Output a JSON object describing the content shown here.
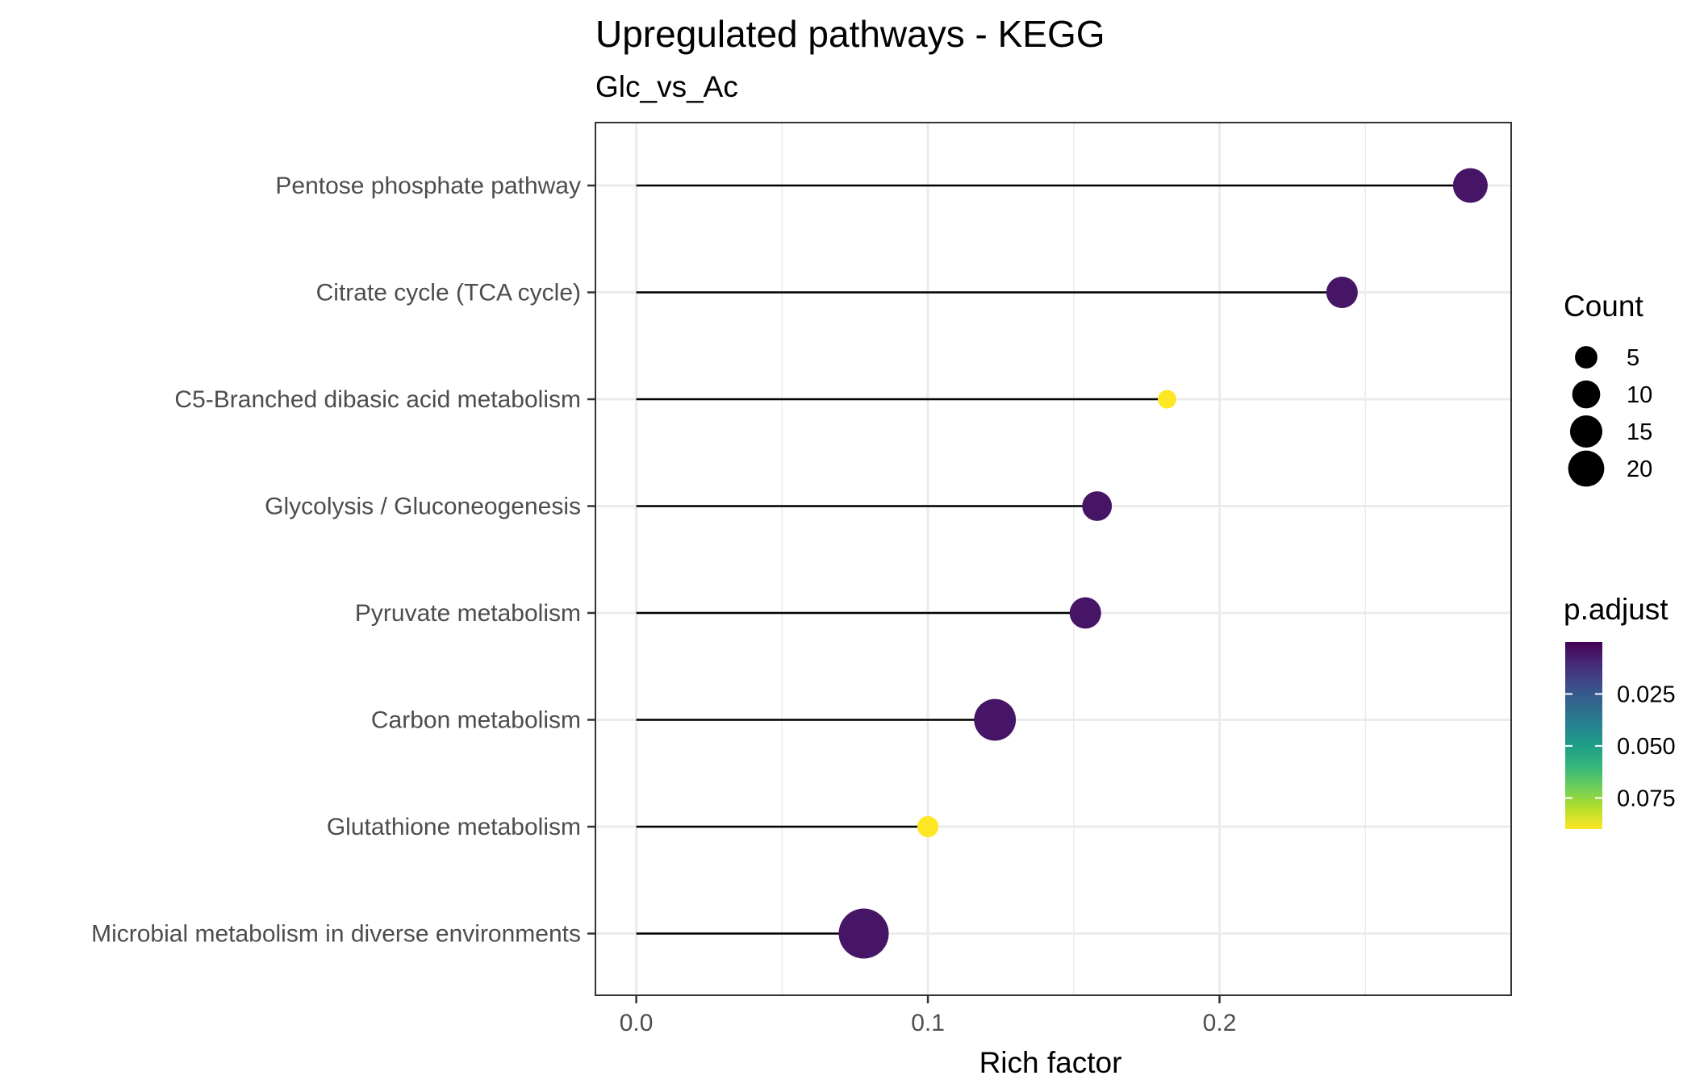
{
  "chart_data": {
    "type": "scatter",
    "subtype": "lollipop",
    "title": "Upregulated pathways - KEGG",
    "subtitle": "Glc_vs_Ac",
    "xlabel": "Rich factor",
    "ylabel": "",
    "xlim": [
      -0.014,
      0.3
    ],
    "x_ticks": [
      0.0,
      0.1,
      0.2
    ],
    "x_tick_labels": [
      "0.0",
      "0.1",
      "0.2"
    ],
    "x_minor_ticks": [
      0.05,
      0.15,
      0.25
    ],
    "grid": true,
    "categories": [
      "Pentose phosphate pathway",
      "Citrate cycle (TCA cycle)",
      "C5-Branched dibasic acid metabolism",
      "Glycolysis / Gluconeogenesis",
      "Pyruvate metabolism",
      "Carbon metabolism",
      "Glutathione metabolism",
      "Microbial metabolism in diverse environments"
    ],
    "points": [
      {
        "pathway": "Pentose phosphate pathway",
        "rich_factor": 0.286,
        "count": 10,
        "p_adjust": 0.005
      },
      {
        "pathway": "Citrate cycle (TCA cycle)",
        "rich_factor": 0.242,
        "count": 8,
        "p_adjust": 0.005
      },
      {
        "pathway": "C5-Branched dibasic acid metabolism",
        "rich_factor": 0.182,
        "count": 2,
        "p_adjust": 0.09
      },
      {
        "pathway": "Glycolysis / Gluconeogenesis",
        "rich_factor": 0.158,
        "count": 7,
        "p_adjust": 0.005
      },
      {
        "pathway": "Pyruvate metabolism",
        "rich_factor": 0.154,
        "count": 8,
        "p_adjust": 0.005
      },
      {
        "pathway": "Carbon metabolism",
        "rich_factor": 0.123,
        "count": 15,
        "p_adjust": 0.005
      },
      {
        "pathway": "Glutathione metabolism",
        "rich_factor": 0.1,
        "count": 3,
        "p_adjust": 0.09
      },
      {
        "pathway": "Microbial metabolism in diverse environments",
        "rich_factor": 0.078,
        "count": 22,
        "p_adjust": 0.005
      }
    ],
    "legend": {
      "placement": "right",
      "size": {
        "title": "Count",
        "values": [
          5,
          10,
          15,
          20
        ],
        "labels": [
          "5",
          "10",
          "15",
          "20"
        ]
      },
      "color": {
        "title": "p.adjust",
        "range": [
          0.0,
          0.09
        ],
        "values": [
          0.025,
          0.05,
          0.075
        ],
        "labels": [
          "0.025",
          "0.050",
          "0.075"
        ],
        "colormap": "viridis (reversed: low = purple, high = yellow)"
      }
    },
    "colors": {
      "line": "#000000",
      "grid": "#ebebeb",
      "panel_border": "#333333",
      "viridis": [
        "#440154",
        "#482878",
        "#3e4a89",
        "#31688e",
        "#26828e",
        "#1f9e89",
        "#35b779",
        "#6ece58",
        "#b5de2b",
        "#fde725"
      ]
    }
  }
}
